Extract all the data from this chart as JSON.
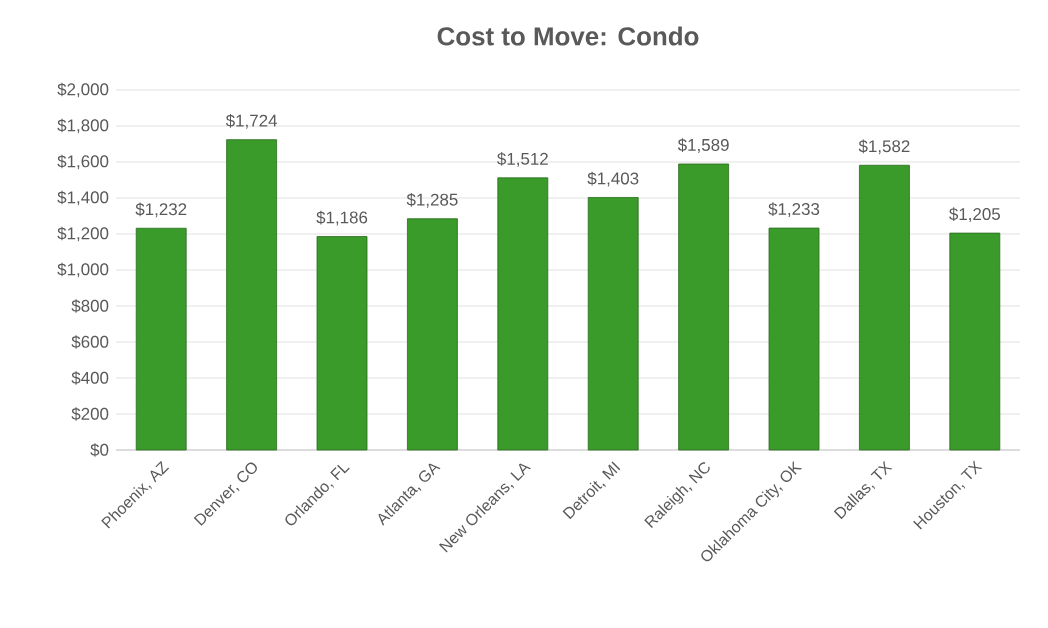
{
  "chart_data": {
    "type": "bar",
    "title": "Cost to Move: Condo",
    "categories": [
      "Phoenix, AZ",
      "Denver, CO",
      "Orlando, FL",
      "Atlanta, GA",
      "New Orleans, LA",
      "Detroit, MI",
      "Raleigh, NC",
      "Oklahoma City, OK",
      "Dallas, TX",
      "Houston, TX"
    ],
    "values": [
      1232,
      1724,
      1186,
      1285,
      1512,
      1403,
      1589,
      1233,
      1582,
      1205
    ],
    "value_labels": [
      "$1,232",
      "$1,724",
      "$1,186",
      "$1,285",
      "$1,512",
      "$1,403",
      "$1,589",
      "$1,233",
      "$1,582",
      "$1,205"
    ],
    "color": "#3a9a2a",
    "ylim": [
      0,
      2000
    ],
    "yticks": [
      {
        "value": 0,
        "label": "$0"
      },
      {
        "value": 200,
        "label": "$200"
      },
      {
        "value": 400,
        "label": "$400"
      },
      {
        "value": 600,
        "label": "$600"
      },
      {
        "value": 800,
        "label": "$800"
      },
      {
        "value": 1000,
        "label": "$1,000"
      },
      {
        "value": 1200,
        "label": "$1,200"
      },
      {
        "value": 1400,
        "label": "$1,400"
      },
      {
        "value": 1600,
        "label": "$1,600"
      },
      {
        "value": 1800,
        "label": "$1,800"
      },
      {
        "value": 2000,
        "label": "$2,000"
      }
    ],
    "grid": "y"
  }
}
